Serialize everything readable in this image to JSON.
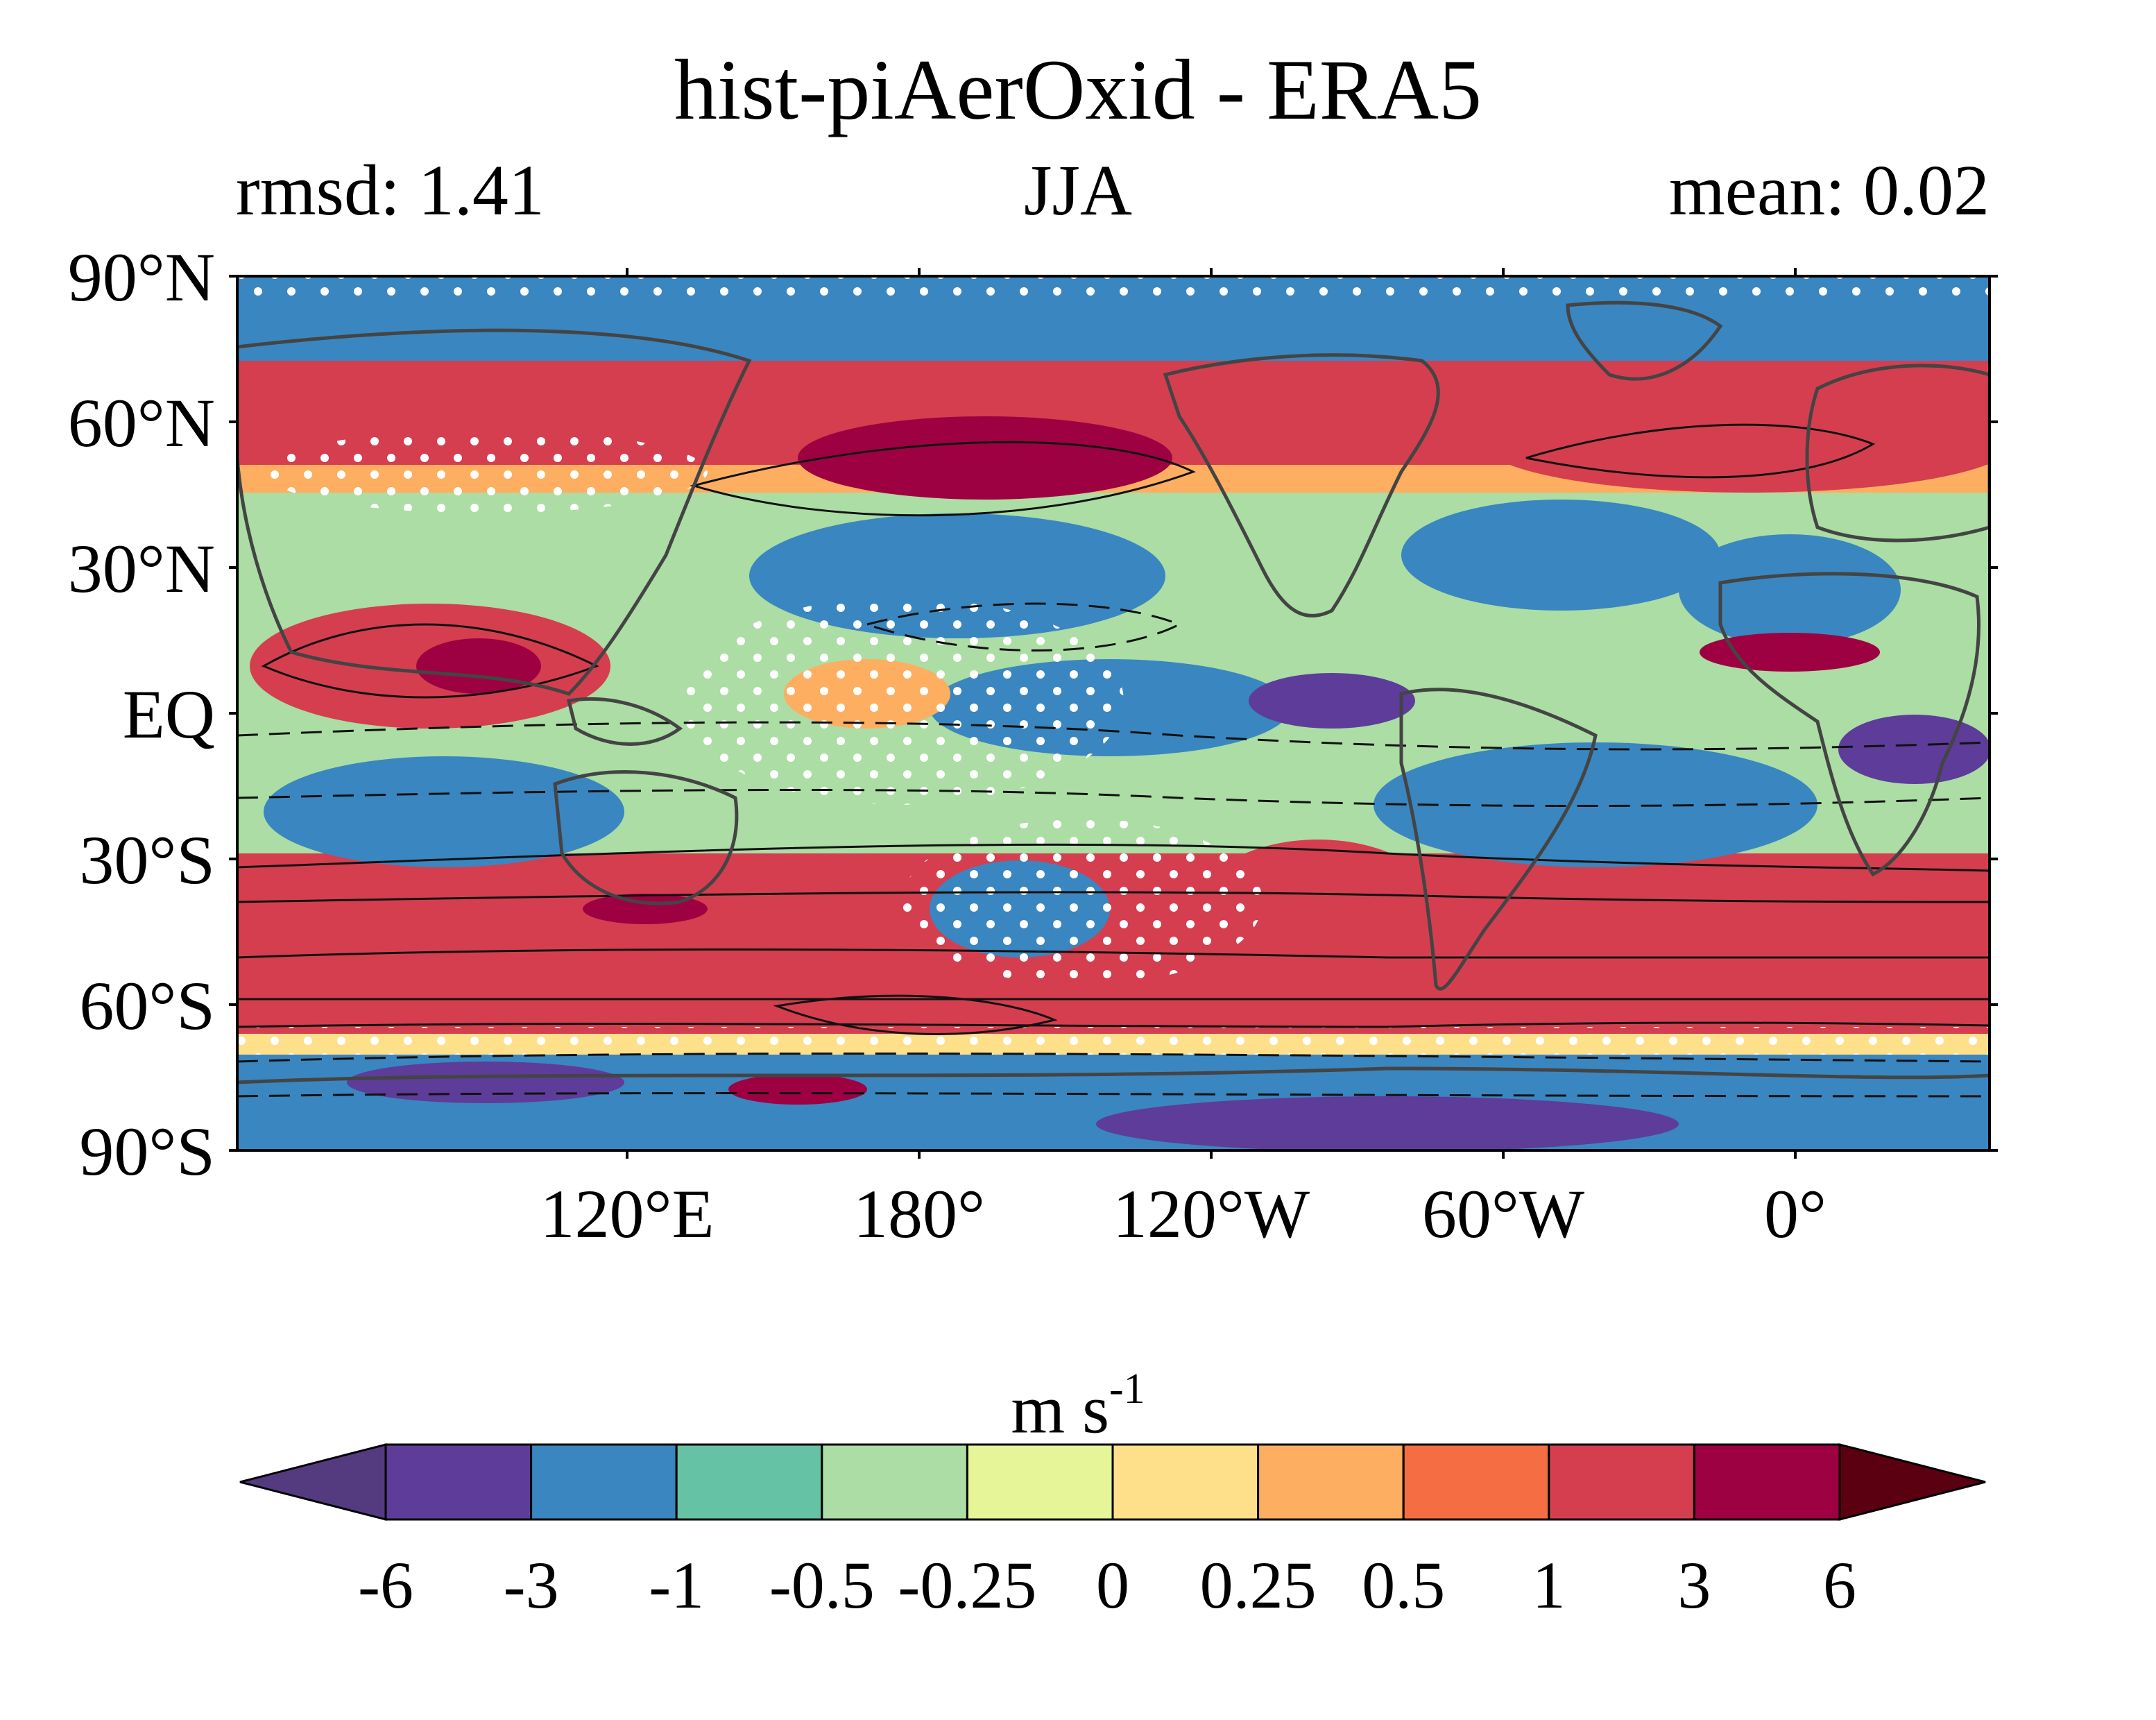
{
  "figure": {
    "title": "hist-piAerOxid - ERA5",
    "left_label": "rmsd: 1.41",
    "center_label": "JJA",
    "right_label": "mean: 0.02"
  },
  "map": {
    "projection": "equirectangular",
    "lon_center": 210,
    "lat_ticks": [
      "90°N",
      "60°N",
      "30°N",
      "EQ",
      "30°S",
      "60°S",
      "90°S"
    ],
    "lon_ticks": [
      "120°E",
      "180°",
      "120°W",
      "60°W",
      "0°"
    ],
    "features": [
      "filled-anomaly-contours",
      "climatology-contour-lines",
      "significance-stippling",
      "coastlines"
    ]
  },
  "colorbar": {
    "unit_main": "m s",
    "unit_sup": "-1",
    "levels": [
      "-6",
      "-3",
      "-1",
      "-0.5",
      "-0.25",
      "0",
      "0.25",
      "0.5",
      "1",
      "3",
      "6"
    ],
    "colors": [
      "#5e3c99",
      "#3a86c0",
      "#66c2a5",
      "#abdda4",
      "#e6f598",
      "#fee08b",
      "#fdae61",
      "#f46d43",
      "#d53e4f",
      "#9e0142"
    ],
    "under_color": "#543b80",
    "over_color": "#5a0010",
    "extend": "both"
  }
}
